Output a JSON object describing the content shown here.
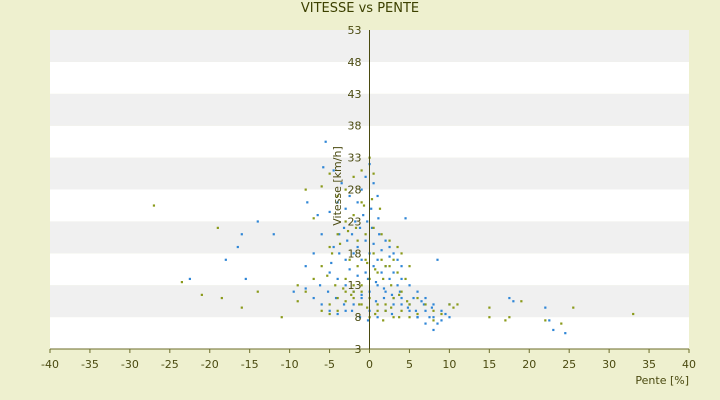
{
  "chart_data": {
    "type": "scatter",
    "title": "VITESSE vs PENTE",
    "xlabel": "Pente [%]",
    "ylabel": "Vitesse [km/h]",
    "xlim": [
      -40,
      40
    ],
    "ylim": [
      3,
      53
    ],
    "xticks": [
      "-40",
      "-35",
      "-30",
      "-25",
      "-20",
      "-15",
      "-10",
      "-5",
      "0",
      "5",
      "10",
      "15",
      "20",
      "25",
      "30",
      "35",
      "40"
    ],
    "yticks": [
      "3",
      "8",
      "13",
      "18",
      "23",
      "28",
      "33",
      "38",
      "43",
      "48",
      "53"
    ],
    "grid": "horizontal alternating bands",
    "series": [
      {
        "color": "#2f86d6",
        "points": [
          [
            -5.5,
            35.5
          ],
          [
            -5.8,
            31.5
          ],
          [
            -4.5,
            31
          ],
          [
            -3.5,
            29
          ],
          [
            -7.8,
            26
          ],
          [
            -6.5,
            24
          ],
          [
            -5,
            24.5
          ],
          [
            -4,
            26
          ],
          [
            -3,
            25
          ],
          [
            -2.5,
            27
          ],
          [
            -1.5,
            26
          ],
          [
            -1,
            28
          ],
          [
            -0.5,
            30
          ],
          [
            0,
            32
          ],
          [
            0.5,
            29
          ],
          [
            1,
            27
          ],
          [
            -3.2,
            22
          ],
          [
            -2.2,
            21
          ],
          [
            -1.2,
            22
          ],
          [
            -0.3,
            23
          ],
          [
            0.3,
            22
          ],
          [
            1.2,
            21
          ],
          [
            2,
            20
          ],
          [
            2.5,
            19
          ],
          [
            3,
            18
          ],
          [
            3.5,
            17
          ],
          [
            4,
            16
          ],
          [
            -4.5,
            19
          ],
          [
            -3.8,
            18
          ],
          [
            -3,
            17
          ],
          [
            -2,
            18
          ],
          [
            -1,
            17
          ],
          [
            0,
            18
          ],
          [
            1,
            17
          ],
          [
            2,
            16
          ],
          [
            3,
            15
          ],
          [
            4,
            14
          ],
          [
            5,
            13
          ],
          [
            6,
            12
          ],
          [
            7,
            11
          ],
          [
            8,
            10
          ],
          [
            9,
            9
          ],
          [
            10,
            10
          ],
          [
            -6,
            21
          ],
          [
            -7,
            18
          ],
          [
            -8,
            16
          ],
          [
            -5,
            15
          ],
          [
            -4,
            14
          ],
          [
            -3,
            13
          ],
          [
            -2,
            12
          ],
          [
            -1,
            11
          ],
          [
            0,
            12
          ],
          [
            1,
            13
          ],
          [
            2,
            12
          ],
          [
            3,
            11
          ],
          [
            4,
            10
          ],
          [
            5,
            9
          ],
          [
            6,
            8
          ],
          [
            7,
            7
          ],
          [
            8,
            6
          ],
          [
            -16,
            21
          ],
          [
            -18,
            17
          ],
          [
            -16.5,
            19
          ],
          [
            -14,
            23
          ],
          [
            -12,
            21
          ],
          [
            -15.5,
            14
          ],
          [
            -22.5,
            14
          ],
          [
            -9.5,
            12
          ],
          [
            -8,
            12.5
          ],
          [
            -7,
            11
          ],
          [
            -6,
            10
          ],
          [
            -5,
            9
          ],
          [
            -4,
            8.5
          ],
          [
            -3,
            9
          ],
          [
            -2,
            10
          ],
          [
            -1,
            11.5
          ],
          [
            0,
            9
          ],
          [
            1,
            8
          ],
          [
            2,
            9
          ],
          [
            3,
            10
          ],
          [
            4,
            11
          ],
          [
            5,
            10
          ],
          [
            6,
            8
          ],
          [
            7,
            9
          ],
          [
            8,
            8
          ],
          [
            9,
            7.5
          ],
          [
            10,
            8
          ],
          [
            5.5,
            11
          ],
          [
            6.5,
            10.5
          ],
          [
            7.5,
            8
          ],
          [
            8.5,
            7
          ],
          [
            9.5,
            8.5
          ],
          [
            4.5,
            23.5
          ],
          [
            8.5,
            17
          ],
          [
            18,
            10.5
          ],
          [
            17.5,
            11
          ],
          [
            22,
            9.5
          ],
          [
            22.5,
            7.5
          ],
          [
            23,
            6
          ],
          [
            24.5,
            5.5
          ],
          [
            -1.5,
            19
          ],
          [
            -0.5,
            20
          ],
          [
            0.5,
            19.5
          ],
          [
            1.5,
            18.5
          ],
          [
            2.5,
            17.5
          ],
          [
            -2.5,
            15.5
          ],
          [
            -1.5,
            14.5
          ],
          [
            -0.5,
            15
          ],
          [
            0.5,
            16
          ],
          [
            1.5,
            15
          ],
          [
            2.5,
            14
          ],
          [
            3.5,
            13
          ],
          [
            -0.8,
            24
          ],
          [
            0.2,
            25
          ],
          [
            1.1,
            23.5
          ],
          [
            -1.8,
            23
          ],
          [
            -2.8,
            20
          ],
          [
            -3.8,
            21
          ],
          [
            -4.8,
            16.5
          ],
          [
            -0.2,
            14
          ],
          [
            0.8,
            13.5
          ],
          [
            1.8,
            12.5
          ],
          [
            2.8,
            11.5
          ],
          [
            3.8,
            12
          ],
          [
            4.8,
            9.5
          ],
          [
            5.8,
            9
          ],
          [
            6.8,
            10
          ],
          [
            7.8,
            9.5
          ],
          [
            -6.2,
            13
          ],
          [
            -5.2,
            12
          ],
          [
            -4.2,
            11
          ],
          [
            -3.2,
            10
          ],
          [
            -2.2,
            9
          ],
          [
            -1.2,
            8
          ],
          [
            -0.2,
            7.5
          ],
          [
            0.8,
            10.5
          ],
          [
            1.8,
            11
          ],
          [
            2.8,
            8.5
          ]
        ]
      },
      {
        "color": "#8a9a1a",
        "points": [
          [
            -27,
            25.5
          ],
          [
            -19,
            22
          ],
          [
            -23.5,
            13.5
          ],
          [
            -21,
            11.5
          ],
          [
            -18.5,
            11
          ],
          [
            -16,
            9.5
          ],
          [
            -14,
            12
          ],
          [
            -11,
            8
          ],
          [
            -9,
            13
          ],
          [
            -9,
            10.5
          ],
          [
            -8,
            28
          ],
          [
            -7,
            23.5
          ],
          [
            -6,
            28.5
          ],
          [
            -5,
            30.5
          ],
          [
            -4,
            27
          ],
          [
            -3,
            28
          ],
          [
            -2,
            30
          ],
          [
            -1,
            31
          ],
          [
            0,
            33
          ],
          [
            0.5,
            30.5
          ],
          [
            -1,
            26
          ],
          [
            -2,
            24
          ],
          [
            -3,
            23
          ],
          [
            -4,
            21
          ],
          [
            -5,
            19
          ],
          [
            -6,
            16
          ],
          [
            -7,
            14
          ],
          [
            -8,
            12
          ],
          [
            -5,
            10
          ],
          [
            -4,
            9
          ],
          [
            -3,
            10.5
          ],
          [
            -2,
            12
          ],
          [
            -1,
            13
          ],
          [
            0,
            14
          ],
          [
            1,
            15
          ],
          [
            2,
            16
          ],
          [
            3,
            17
          ],
          [
            4,
            18
          ],
          [
            5,
            16
          ],
          [
            -1.5,
            20
          ],
          [
            -0.5,
            21
          ],
          [
            0.5,
            22
          ],
          [
            1.5,
            21
          ],
          [
            2.5,
            20
          ],
          [
            3.5,
            19
          ],
          [
            -2.5,
            17
          ],
          [
            -1.5,
            16
          ],
          [
            -0.5,
            17
          ],
          [
            0.5,
            18
          ],
          [
            1.5,
            17
          ],
          [
            2.5,
            16
          ],
          [
            3.5,
            15
          ],
          [
            4.5,
            14
          ],
          [
            -3,
            14
          ],
          [
            -2,
            13
          ],
          [
            -1,
            12
          ],
          [
            0,
            11
          ],
          [
            1,
            10
          ],
          [
            2,
            9
          ],
          [
            3,
            8
          ],
          [
            4,
            9
          ],
          [
            5,
            10
          ],
          [
            6,
            11
          ],
          [
            7,
            10
          ],
          [
            8,
            9
          ],
          [
            -6,
            9
          ],
          [
            -5,
            8.5
          ],
          [
            -4,
            11
          ],
          [
            -3,
            12
          ],
          [
            -2,
            11
          ],
          [
            -1,
            10
          ],
          [
            0,
            8
          ],
          [
            1,
            9
          ],
          [
            2,
            10
          ],
          [
            3,
            11
          ],
          [
            4,
            12
          ],
          [
            5,
            8
          ],
          [
            10,
            10
          ],
          [
            10.5,
            9.5
          ],
          [
            11,
            10
          ],
          [
            15,
            9.5
          ],
          [
            15,
            8
          ],
          [
            17,
            7.5
          ],
          [
            17.5,
            8
          ],
          [
            19,
            10.5
          ],
          [
            22,
            7.5
          ],
          [
            24,
            7
          ],
          [
            25.5,
            9.5
          ],
          [
            33,
            8.5
          ],
          [
            9,
            8.5
          ],
          [
            8,
            7.5
          ],
          [
            6,
            8.5
          ],
          [
            0.3,
            26.5
          ],
          [
            1.3,
            25
          ],
          [
            -0.7,
            25.5
          ],
          [
            -1.7,
            22
          ],
          [
            -2.7,
            21.5
          ],
          [
            -3.7,
            19.5
          ],
          [
            -4.7,
            18
          ],
          [
            -0.3,
            16.5
          ],
          [
            0.7,
            15.5
          ],
          [
            1.7,
            14
          ],
          [
            2.7,
            13
          ],
          [
            3.7,
            11.5
          ],
          [
            4.7,
            10.5
          ],
          [
            -5.3,
            14.5
          ],
          [
            -4.3,
            13
          ],
          [
            -3.3,
            12.5
          ],
          [
            -2.3,
            11.5
          ],
          [
            -1.3,
            10
          ],
          [
            -0.3,
            9.5
          ],
          [
            0.7,
            8.5
          ],
          [
            1.7,
            7.5
          ],
          [
            2.7,
            9.5
          ],
          [
            3.7,
            8
          ]
        ]
      }
    ]
  }
}
